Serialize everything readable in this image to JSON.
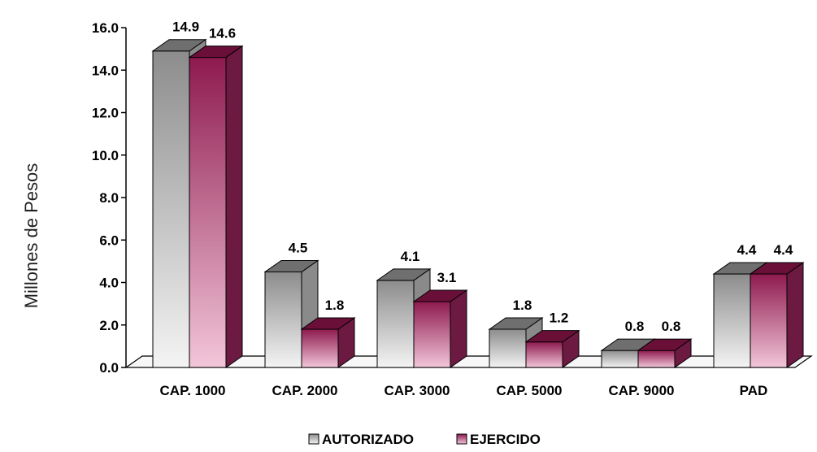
{
  "chart_data": {
    "type": "bar",
    "title": "",
    "xlabel": "",
    "ylabel": "Millones de Pesos",
    "categories": [
      "CAP. 1000",
      "CAP. 2000",
      "CAP. 3000",
      "CAP. 5000",
      "CAP. 9000",
      "PAD"
    ],
    "series": [
      {
        "name": "AUTORIZADO",
        "values": [
          14.9,
          4.5,
          4.1,
          1.8,
          0.8,
          4.4
        ],
        "labels": [
          "14.9",
          "4.5",
          "4.1",
          "1.8",
          "0.8",
          "4.4"
        ]
      },
      {
        "name": "EJERCIDO",
        "values": [
          14.6,
          1.8,
          3.1,
          1.2,
          0.8,
          4.4
        ],
        "labels": [
          "14.6",
          "1.8",
          "3.1",
          "1.2",
          "0.8",
          "4.4"
        ]
      }
    ],
    "ylim": [
      0,
      16
    ],
    "yticks": [
      "0.0",
      "2.0",
      "4.0",
      "6.0",
      "8.0",
      "10.0",
      "12.0",
      "14.0",
      "16.0"
    ],
    "grid": false,
    "legend_position": "bottom-center",
    "three_d": true,
    "colors": {
      "autorizado_dark": "#8c8c8c",
      "autorizado_light": "#f4f4f4",
      "ejercido_dark": "#8e1a4f",
      "ejercido_light": "#f2c6d9"
    }
  }
}
